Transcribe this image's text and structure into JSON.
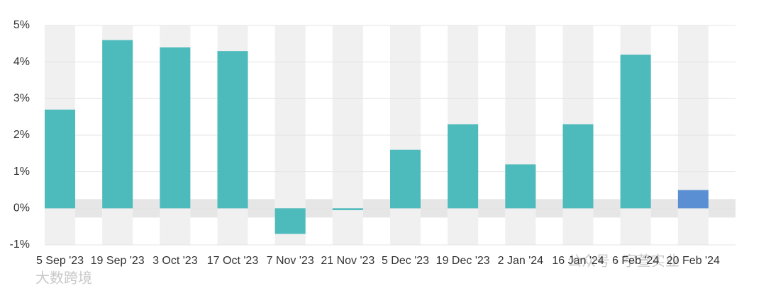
{
  "chart_data": {
    "type": "bar",
    "categories": [
      "5 Sep '23",
      "19 Sep '23",
      "3 Oct '23",
      "17 Oct '23",
      "7 Nov '23",
      "21 Nov '23",
      "5 Dec '23",
      "19 Dec '23",
      "2 Jan '24",
      "16 Jan '24",
      "6 Feb '24",
      "20 Feb '24"
    ],
    "values": [
      2.7,
      4.6,
      4.4,
      4.3,
      -0.7,
      -0.05,
      1.6,
      2.3,
      1.2,
      2.3,
      4.2,
      0.5
    ],
    "colors": [
      "#4dbabb",
      "#4dbabb",
      "#4dbabb",
      "#4dbabb",
      "#4dbabb",
      "#4dbabb",
      "#4dbabb",
      "#4dbabb",
      "#4dbabb",
      "#4dbabb",
      "#4dbabb",
      "#5a8fd4"
    ],
    "ylim": [
      -1,
      5
    ],
    "yticks": [
      {
        "value": -1,
        "label": "-1%"
      },
      {
        "value": 0,
        "label": "0%"
      },
      {
        "value": 1,
        "label": "1%"
      },
      {
        "value": 2,
        "label": "2%"
      },
      {
        "value": 3,
        "label": "3%"
      },
      {
        "value": 4,
        "label": "4%"
      },
      {
        "value": 5,
        "label": "5%"
      }
    ],
    "grid": true
  },
  "watermarks": [
    "公众号 · 宇萱实业",
    "大数跨境"
  ]
}
